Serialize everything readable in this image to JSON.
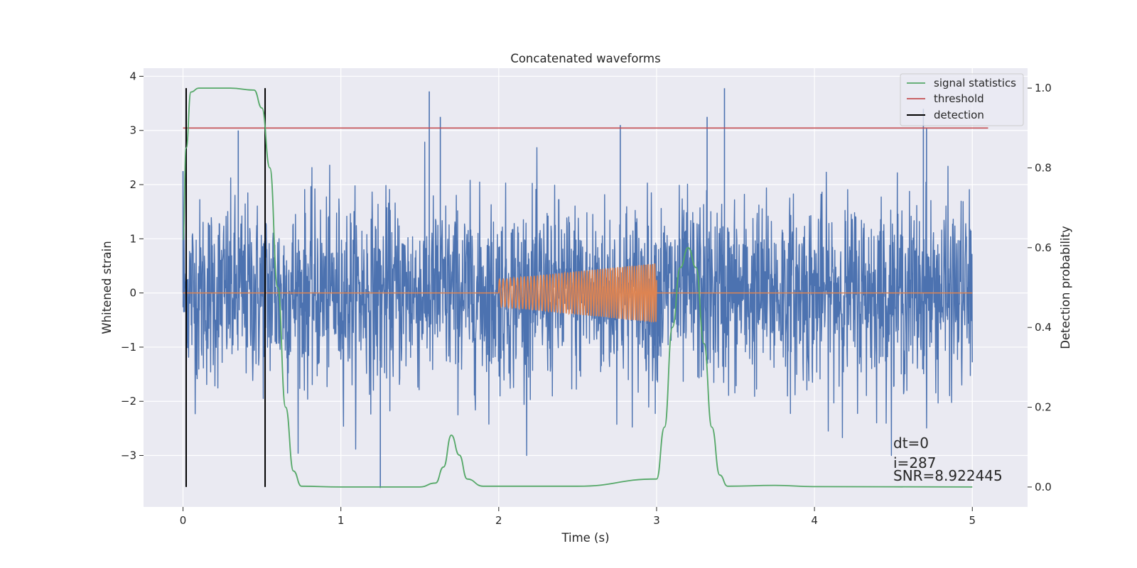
{
  "chart_data": {
    "type": "line",
    "title": "Concatenated waveforms",
    "xlabel": "Time (s)",
    "ylabel": "Whitened strain",
    "y2label": "Detection probability",
    "xlim": [
      -0.25,
      5.35
    ],
    "ylim": [
      -3.95,
      4.15
    ],
    "y2lim": [
      -0.05,
      1.05
    ],
    "x_ticks": [
      0,
      1,
      2,
      3,
      4,
      5
    ],
    "y_ticks": [
      -3,
      -2,
      -1,
      0,
      1,
      2,
      3,
      4
    ],
    "y2_ticks": [
      0.0,
      0.2,
      0.4,
      0.6,
      0.8,
      1.0
    ],
    "x_tick_labels": [
      "0",
      "1",
      "2",
      "3",
      "4",
      "5"
    ],
    "y_tick_labels": [
      "−3",
      "−2",
      "−1",
      "0",
      "1",
      "2",
      "3",
      "4"
    ],
    "y2_tick_labels": [
      "0.0",
      "0.2",
      "0.4",
      "0.6",
      "0.8",
      "1.0"
    ],
    "grid": true,
    "legend_position": "top-right",
    "legend": [
      "signal statistics",
      "threshold",
      "detection"
    ],
    "series": [
      {
        "name": "whitened strain",
        "axis": "left",
        "color": "#4c72b0",
        "description": "noise-like strain, |amplitude| mostly within 2, spikes up to about 3.8",
        "x_range": [
          0,
          5
        ],
        "points": [
          [
            0,
            2.25
          ],
          [
            0.35,
            3.0
          ],
          [
            1.25,
            -3.6
          ],
          [
            1.56,
            3.72
          ],
          [
            1.63,
            3.25
          ],
          [
            2.77,
            3.1
          ],
          [
            3.32,
            3.25
          ],
          [
            4.71,
            3.05
          ],
          [
            3.43,
            3.78
          ],
          [
            4.69,
            3.4
          ]
        ]
      },
      {
        "name": "injected signal",
        "axis": "left",
        "color": "#dd8452",
        "description": "chirp between t=2 s and t=3 s, amplitude growing from 0.25 to 0.55, zero elsewhere",
        "x": [
          0,
          2,
          3,
          5
        ],
        "amplitude": [
          0,
          0.25,
          0.55,
          0
        ]
      },
      {
        "name": "signal statistics",
        "axis": "right",
        "color": "#55a868",
        "x": [
          0,
          0.02,
          0.05,
          0.1,
          0.3,
          0.45,
          0.5,
          0.55,
          0.6,
          0.65,
          0.7,
          0.75,
          1.0,
          1.5,
          1.6,
          1.65,
          1.7,
          1.75,
          1.8,
          1.9,
          2.5,
          3.0,
          3.05,
          3.1,
          3.15,
          3.2,
          3.25,
          3.3,
          3.35,
          3.4,
          3.45,
          3.75,
          4.0,
          5.0
        ],
        "y": [
          0.62,
          0.85,
          0.99,
          1.0,
          1.0,
          0.995,
          0.95,
          0.8,
          0.5,
          0.2,
          0.04,
          0.002,
          0.0,
          0.0,
          0.01,
          0.05,
          0.13,
          0.08,
          0.02,
          0.002,
          0.002,
          0.02,
          0.15,
          0.4,
          0.55,
          0.6,
          0.55,
          0.36,
          0.15,
          0.03,
          0.002,
          0.004,
          0.001,
          0.0
        ]
      },
      {
        "name": "threshold",
        "axis": "right",
        "color": "#c44e52",
        "x": [
          0,
          5.1
        ],
        "y": [
          0.9,
          0.9
        ]
      }
    ],
    "detections": {
      "name": "detection",
      "color": "#000000",
      "x": [
        0.02,
        0.52
      ],
      "y_range": [
        0.0,
        1.0
      ]
    },
    "annotations": [
      "dt=0",
      "i=287",
      "SNR=8.922445"
    ]
  }
}
